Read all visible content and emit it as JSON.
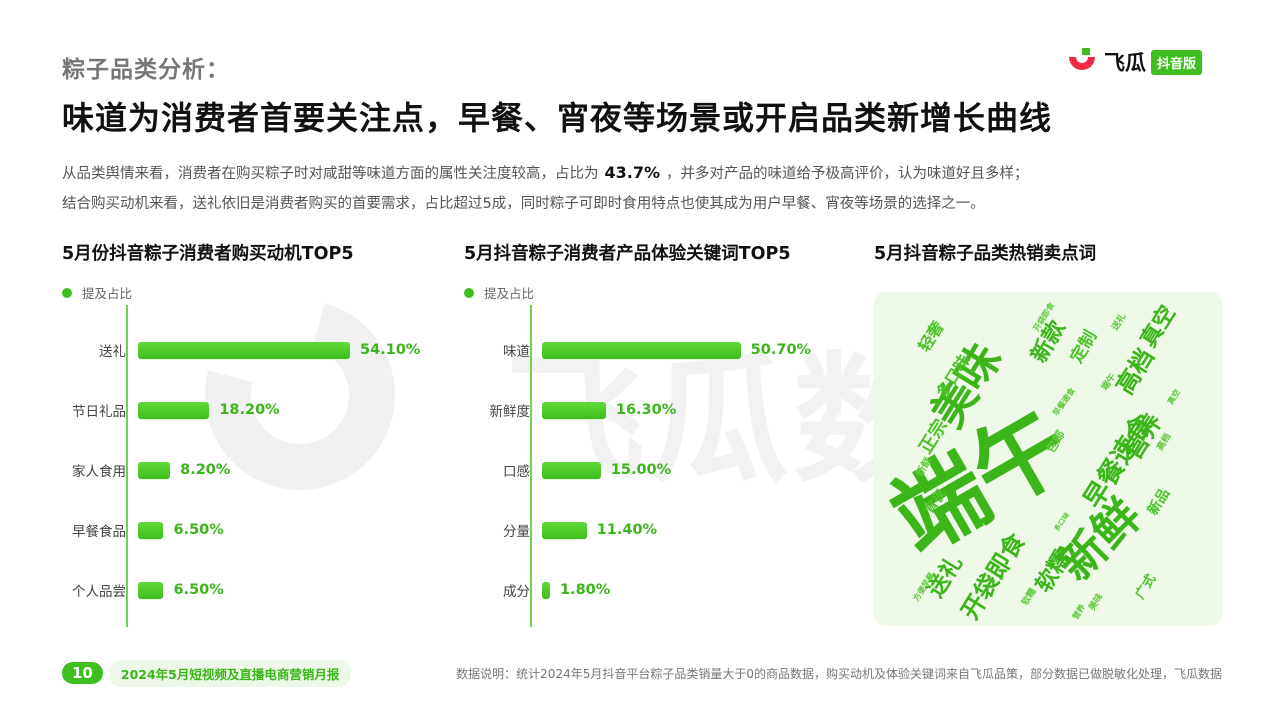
{
  "watermark": {
    "text": "飞瓜数据"
  },
  "header": {
    "section_label": "粽子品类分析：",
    "logo_name": "飞瓜",
    "logo_badge": "抖音版",
    "headline": "味道为消费者首要关注点，早餐、宵夜等场景或开启品类新增长曲线"
  },
  "summary": {
    "line1_before": "从品类舆情来看，消费者在购买粽子时对咸甜等味道方面的属性关注度较高，占比为",
    "line1_highlight": "43.7%",
    "line1_after": "，并多对产品的味道给予极高评价，认为味道好且多样；",
    "line2": "结合购买动机来看，送礼依旧是消费者购买的首要需求，占比超过5成，同时粽子可即时食用特点也使其成为用户早餐、宵夜等场景的选择之一。"
  },
  "charts": {
    "motives_title": "5月份抖音粽子消费者购买动机TOP5",
    "keywords_title": "5月抖音粽子消费者产品体验关键词TOP5",
    "cloud_title": "5月抖音粽子品类热销卖点词",
    "legend_label": "提及占比"
  },
  "chart_data": [
    {
      "type": "bar",
      "title": "5月份抖音粽子消费者购买动机TOP5",
      "orientation": "horizontal",
      "categories": [
        "送礼",
        "节日礼品",
        "家人食用",
        "早餐食品",
        "个人品尝"
      ],
      "series": [
        {
          "name": "提及占比",
          "values": [
            54.1,
            18.2,
            8.2,
            6.5,
            6.5
          ]
        }
      ],
      "value_labels": [
        "54.10%",
        "18.20%",
        "8.20%",
        "6.50%",
        "6.50%"
      ],
      "color": "#3fbf1f",
      "legend": "top-left"
    },
    {
      "type": "bar",
      "title": "5月抖音粽子消费者产品体验关键词TOP5",
      "orientation": "horizontal",
      "categories": [
        "味道",
        "新鲜度",
        "口感",
        "分量",
        "成分"
      ],
      "series": [
        {
          "name": "提及占比",
          "values": [
            50.7,
            16.3,
            15.0,
            11.4,
            1.8
          ]
        }
      ],
      "value_labels": [
        "50.70%",
        "16.30%",
        "15.00%",
        "11.40%",
        "1.80%"
      ],
      "color": "#3fbf1f",
      "legend": "top-left"
    }
  ],
  "word_cloud": {
    "words": [
      {
        "text": "端午",
        "weight": 1.0
      },
      {
        "text": "美味",
        "weight": 0.6
      },
      {
        "text": "新鲜",
        "weight": 0.62
      },
      {
        "text": "早餐速食",
        "weight": 0.42
      },
      {
        "text": "开袋即食",
        "weight": 0.38
      },
      {
        "text": "软糯",
        "weight": 0.36
      },
      {
        "text": "高档",
        "weight": 0.34
      },
      {
        "text": "营养",
        "weight": 0.33
      },
      {
        "text": "真空",
        "weight": 0.32
      },
      {
        "text": "新款",
        "weight": 0.3
      },
      {
        "text": "送礼",
        "weight": 0.3
      },
      {
        "text": "多口味",
        "weight": 0.26
      },
      {
        "text": "正宗",
        "weight": 0.26
      },
      {
        "text": "定制",
        "weight": 0.24
      },
      {
        "text": "轻奢",
        "weight": 0.2
      },
      {
        "text": "新品",
        "weight": 0.2
      },
      {
        "text": "宵夜",
        "weight": 0.18
      },
      {
        "text": "广式",
        "weight": 0.16
      },
      {
        "text": "包邮",
        "weight": 0.15
      },
      {
        "text": "新鲜",
        "weight": 0.13
      },
      {
        "text": "端午",
        "weight": 0.12
      },
      {
        "text": "高档",
        "weight": 0.12
      },
      {
        "text": "送礼",
        "weight": 0.12
      },
      {
        "text": "开袋即食",
        "weight": 0.1
      },
      {
        "text": "早餐速食",
        "weight": 0.1
      },
      {
        "text": "真空",
        "weight": 0.1
      },
      {
        "text": "多口味",
        "weight": 0.1
      },
      {
        "text": "美味",
        "weight": 0.1
      },
      {
        "text": "营养",
        "weight": 0.1
      },
      {
        "text": "方便早餐",
        "weight": 0.1
      },
      {
        "text": "软糯",
        "weight": 0.1
      }
    ]
  },
  "footer": {
    "page_number": "10",
    "report_name": "2024年5月短视频及直播电商营销月报",
    "source_note": "数据说明：统计2024年5月抖音平台粽子品类销量大于0的商品数据，购买动机及体验关键词来自飞瓜品策，部分数据已做脱敏化处理，飞瓜数据"
  }
}
